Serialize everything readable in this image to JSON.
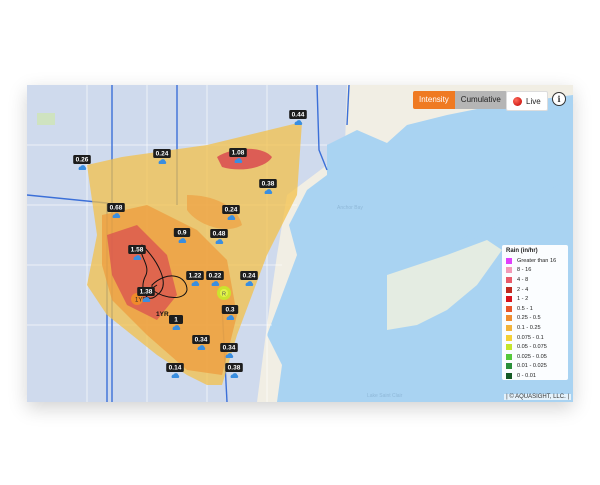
{
  "controls": {
    "intensity_label": "Intensity",
    "cumulative_label": "Cumulative",
    "live_label": "Live",
    "info_glyph": "i"
  },
  "legend": {
    "title": "Rain (in/hr)",
    "items": [
      {
        "label": "Greater than 16",
        "color": "#e040fb"
      },
      {
        "label": "8 - 16",
        "color": "#f39ab8"
      },
      {
        "label": "4 - 8",
        "color": "#e85a6a"
      },
      {
        "label": "2 - 4",
        "color": "#c0281f"
      },
      {
        "label": "1 - 2",
        "color": "#d8121c"
      },
      {
        "label": "0.5 - 1",
        "color": "#e8542a"
      },
      {
        "label": "0.25 - 0.5",
        "color": "#ef8c2e"
      },
      {
        "label": "0.1 - 0.25",
        "color": "#f2b33a"
      },
      {
        "label": "0.075 - 0.1",
        "color": "#f4d035"
      },
      {
        "label": "0.05 - 0.075",
        "color": "#c4e52c"
      },
      {
        "label": "0.025 - 0.05",
        "color": "#55c83a"
      },
      {
        "label": "0.01 - 0.025",
        "color": "#2a8f3a"
      },
      {
        "label": "0 - 0.01",
        "color": "#155a25"
      }
    ]
  },
  "gauges": [
    {
      "value": "0.26"
    },
    {
      "value": "0.24"
    },
    {
      "value": "0.44"
    },
    {
      "value": "1.08"
    },
    {
      "value": "0.38"
    },
    {
      "value": "0.68"
    },
    {
      "value": "0.24"
    },
    {
      "value": "0.9"
    },
    {
      "value": "0.48"
    },
    {
      "value": "1.58"
    },
    {
      "value": "1.22"
    },
    {
      "value": "0.22"
    },
    {
      "value": "0.24"
    },
    {
      "value": "1.38"
    },
    {
      "value": "0.3"
    },
    {
      "value": "1"
    },
    {
      "value": "0.34"
    },
    {
      "value": "0.34"
    },
    {
      "value": "0.14"
    },
    {
      "value": "0.38"
    }
  ],
  "markers": {
    "storm_label": "1YR",
    "storm_label_short": "1YR",
    "green_marker": "R"
  },
  "map": {
    "lake_label": "Lake Saint Clair",
    "bay_label": "Anchor Bay"
  },
  "attribution": "| © AQUASIGHT, LLC. |"
}
